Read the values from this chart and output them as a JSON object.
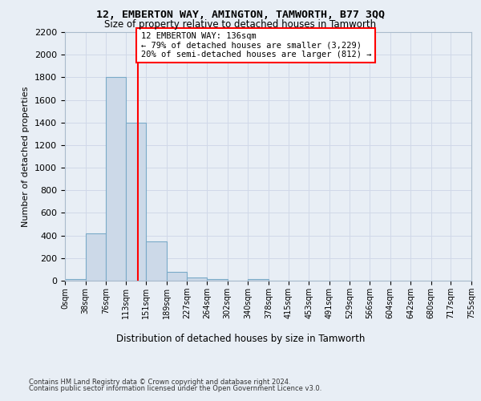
{
  "title_line1": "12, EMBERTON WAY, AMINGTON, TAMWORTH, B77 3QQ",
  "title_line2": "Size of property relative to detached houses in Tamworth",
  "xlabel": "Distribution of detached houses by size in Tamworth",
  "ylabel": "Number of detached properties",
  "footer_line1": "Contains HM Land Registry data © Crown copyright and database right 2024.",
  "footer_line2": "Contains public sector information licensed under the Open Government Licence v3.0.",
  "bin_edges": [
    0,
    38,
    76,
    113,
    151,
    189,
    227,
    264,
    302,
    340,
    378,
    415,
    453,
    491,
    529,
    566,
    604,
    642,
    680,
    717,
    755
  ],
  "bar_heights": [
    15,
    420,
    1800,
    1400,
    350,
    75,
    25,
    15,
    0,
    15,
    0,
    0,
    0,
    0,
    0,
    0,
    0,
    0,
    0,
    0
  ],
  "bar_color": "#ccd9e8",
  "bar_edge_color": "#7aaac8",
  "grid_color": "#d0d8e8",
  "annotation_text": "12 EMBERTON WAY: 136sqm\n← 79% of detached houses are smaller (3,229)\n20% of semi-detached houses are larger (812) →",
  "vline_x": 136,
  "vline_color": "red",
  "ylim": [
    0,
    2200
  ],
  "yticks": [
    0,
    200,
    400,
    600,
    800,
    1000,
    1200,
    1400,
    1600,
    1800,
    2000,
    2200
  ],
  "background_color": "#e8eef5",
  "plot_background": "#e8eef5"
}
